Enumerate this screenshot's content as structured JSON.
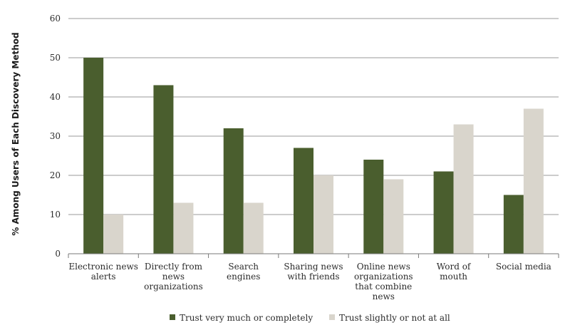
{
  "chart_data": {
    "type": "bar",
    "title": "",
    "xlabel": "",
    "ylabel": "% Among Users of Each Discovery Method",
    "ylim": [
      0,
      60
    ],
    "yticks": [
      0,
      10,
      20,
      30,
      40,
      50,
      60
    ],
    "grid": true,
    "legend_position": "bottom",
    "categories": [
      [
        "Electronic news",
        "alerts"
      ],
      [
        "Directly from",
        "news",
        "organizations"
      ],
      [
        "Search",
        "engines"
      ],
      [
        "Sharing news",
        "with friends"
      ],
      [
        "Online news",
        "organizations",
        "that combine",
        "news"
      ],
      [
        "Word of",
        "mouth"
      ],
      [
        "Social media"
      ]
    ],
    "series": [
      {
        "name": "Trust very much or completely",
        "color": "#4a5e2e",
        "values": [
          50,
          43,
          32,
          27,
          24,
          21,
          15
        ]
      },
      {
        "name": "Trust slightly or not at all",
        "color": "#d9d5cc",
        "values": [
          10,
          13,
          13,
          20,
          19,
          33,
          37
        ]
      }
    ]
  }
}
